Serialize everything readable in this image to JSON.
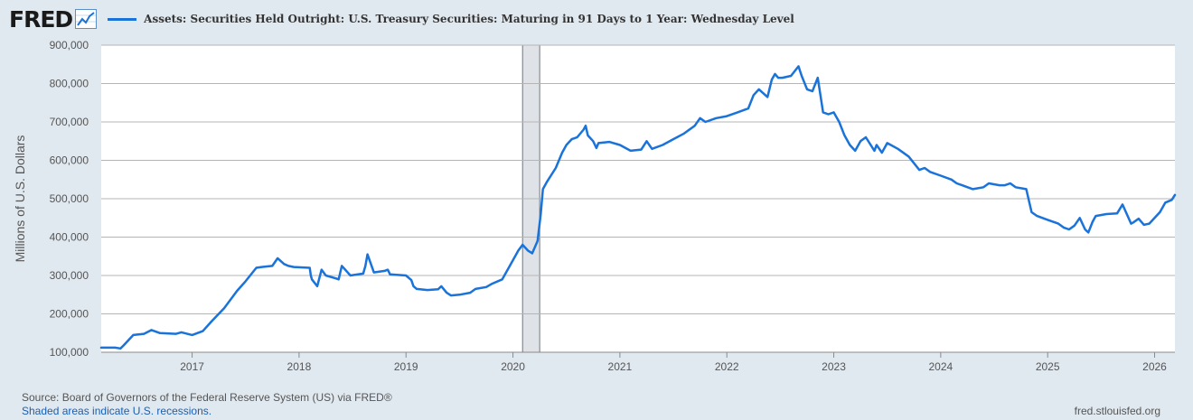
{
  "header": {
    "logo_text": "FRED",
    "legend_label": "Assets: Securities Held Outright: U.S. Treasury Securities: Maturing in 91 Days to 1 Year: Wednesday Level",
    "series_color": "#1a73d9"
  },
  "footer": {
    "source": "Source: Board of Governors of the Federal Reserve System (US) via FRED®",
    "recession_note": "Shaded areas indicate U.S. recessions.",
    "site": "fred.stlouisfed.org"
  },
  "chart_data": {
    "type": "line",
    "title": "Assets: Securities Held Outright: U.S. Treasury Securities: Maturing in 91 Days to 1 Year: Wednesday Level",
    "xlabel": "",
    "ylabel": "Millions of U.S. Dollars",
    "xlim": [
      2016.15,
      2026.19
    ],
    "ylim": [
      100000,
      900000
    ],
    "x_ticks": [
      2017,
      2018,
      2019,
      2020,
      2021,
      2022,
      2023,
      2024,
      2025,
      2026
    ],
    "y_ticks": [
      100000,
      200000,
      300000,
      400000,
      500000,
      600000,
      700000,
      800000,
      900000
    ],
    "y_tick_labels": [
      "100,000",
      "200,000",
      "300,000",
      "400,000",
      "500,000",
      "600,000",
      "700,000",
      "800,000",
      "900,000"
    ],
    "recessions": [
      {
        "start": 2020.09,
        "end": 2020.25
      }
    ],
    "grid": true,
    "series": [
      {
        "name": "Assets: Securities Held Outright: U.S. Treasury Securities: Maturing in 91 Days to 1 Year: Wednesday Level",
        "color": "#1a73d9",
        "x": [
          2016.15,
          2016.28,
          2016.33,
          2016.36,
          2016.45,
          2016.55,
          2016.62,
          2016.7,
          2016.85,
          2016.9,
          2017.0,
          2017.1,
          2017.18,
          2017.3,
          2017.42,
          2017.5,
          2017.6,
          2017.65,
          2017.75,
          2017.8,
          2017.86,
          2017.9,
          2017.95,
          2018.1,
          2018.11,
          2018.12,
          2018.17,
          2018.21,
          2018.25,
          2018.35,
          2018.37,
          2018.4,
          2018.48,
          2018.6,
          2018.62,
          2018.64,
          2018.7,
          2018.8,
          2018.83,
          2018.85,
          2019.0,
          2019.05,
          2019.07,
          2019.1,
          2019.2,
          2019.3,
          2019.33,
          2019.38,
          2019.42,
          2019.5,
          2019.6,
          2019.65,
          2019.75,
          2019.8,
          2019.9,
          2019.92,
          2020.0,
          2020.05,
          2020.09,
          2020.14,
          2020.18,
          2020.23,
          2020.26,
          2020.28,
          2020.32,
          2020.4,
          2020.46,
          2020.5,
          2020.55,
          2020.6,
          2020.66,
          2020.68,
          2020.7,
          2020.75,
          2020.78,
          2020.8,
          2020.9,
          2021.0,
          2021.1,
          2021.2,
          2021.25,
          2021.3,
          2021.4,
          2021.5,
          2021.6,
          2021.7,
          2021.75,
          2021.8,
          2021.9,
          2022.0,
          2022.1,
          2022.2,
          2022.25,
          2022.3,
          2022.38,
          2022.42,
          2022.45,
          2022.48,
          2022.52,
          2022.6,
          2022.67,
          2022.7,
          2022.75,
          2022.8,
          2022.85,
          2022.9,
          2022.95,
          2023.0,
          2023.05,
          2023.1,
          2023.15,
          2023.2,
          2023.25,
          2023.3,
          2023.38,
          2023.4,
          2023.45,
          2023.5,
          2023.6,
          2023.7,
          2023.8,
          2023.85,
          2023.9,
          2024.0,
          2024.1,
          2024.15,
          2024.2,
          2024.3,
          2024.4,
          2024.45,
          2024.55,
          2024.6,
          2024.65,
          2024.7,
          2024.8,
          2024.85,
          2024.9,
          2025.0,
          2025.1,
          2025.15,
          2025.2,
          2025.25,
          2025.3,
          2025.35,
          2025.38,
          2025.42,
          2025.45,
          2025.55,
          2025.65,
          2025.7,
          2025.78,
          2025.8,
          2025.85,
          2025.9,
          2025.95,
          2026.05,
          2026.1,
          2026.16,
          2026.19
        ],
        "values": [
          112000,
          112000,
          110000,
          118000,
          145000,
          148000,
          158000,
          150000,
          148000,
          152000,
          145000,
          155000,
          180000,
          215000,
          260000,
          285000,
          320000,
          322000,
          325000,
          345000,
          330000,
          325000,
          322000,
          320000,
          300000,
          290000,
          272000,
          315000,
          300000,
          292000,
          290000,
          325000,
          300000,
          305000,
          325000,
          355000,
          308000,
          312000,
          315000,
          303000,
          300000,
          288000,
          272000,
          265000,
          262000,
          264000,
          272000,
          255000,
          248000,
          250000,
          255000,
          265000,
          270000,
          278000,
          290000,
          300000,
          340000,
          365000,
          380000,
          365000,
          358000,
          390000,
          460000,
          525000,
          545000,
          580000,
          620000,
          640000,
          655000,
          660000,
          680000,
          690000,
          665000,
          650000,
          632000,
          645000,
          648000,
          640000,
          625000,
          628000,
          650000,
          630000,
          640000,
          655000,
          670000,
          690000,
          710000,
          700000,
          710000,
          715000,
          725000,
          735000,
          770000,
          785000,
          765000,
          810000,
          825000,
          815000,
          815000,
          820000,
          845000,
          820000,
          785000,
          780000,
          815000,
          725000,
          720000,
          725000,
          700000,
          665000,
          640000,
          625000,
          650000,
          660000,
          625000,
          640000,
          620000,
          645000,
          630000,
          610000,
          575000,
          580000,
          570000,
          560000,
          550000,
          540000,
          535000,
          525000,
          530000,
          540000,
          535000,
          535000,
          540000,
          530000,
          525000,
          465000,
          455000,
          445000,
          435000,
          425000,
          420000,
          430000,
          450000,
          420000,
          412000,
          440000,
          455000,
          460000,
          462000,
          485000,
          435000,
          438000,
          448000,
          432000,
          435000,
          465000,
          490000,
          497000,
          510000
        ]
      }
    ]
  }
}
